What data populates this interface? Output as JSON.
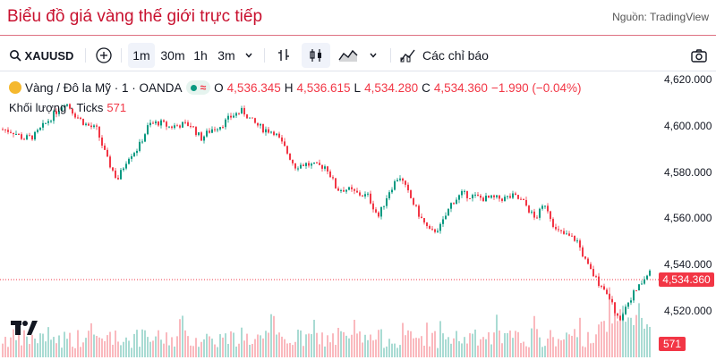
{
  "header": {
    "title": "Biểu đồ giá vàng thế giới trực tiếp",
    "source": "Nguồn: TradingView"
  },
  "toolbar": {
    "symbol": "XAUUSD",
    "intervals": [
      "1m",
      "30m",
      "1h",
      "3m"
    ],
    "active_interval": "1m",
    "indicators_label": "Các chỉ báo"
  },
  "legend": {
    "instrument": "Vàng / Đô la Mỹ · 1 · OANDA",
    "open_label": "O",
    "open": "4,536.345",
    "high_label": "H",
    "high": "4,536.615",
    "low_label": "L",
    "low": "4,534.280",
    "close_label": "C",
    "close": "4,534.360",
    "change": "−1.990 (−0.04%)",
    "volume_label": "Khối lượng · Ticks",
    "volume_value": "571"
  },
  "axis": {
    "ticks": [
      "4,620.000",
      "4,600.000",
      "4,580.000",
      "4,560.000",
      "4,540.000",
      "4,520.000"
    ],
    "tick_values": [
      4620,
      4600,
      4580,
      4560,
      4540,
      4520
    ],
    "last_price": "4,534.360",
    "last_volume": "571"
  },
  "colors": {
    "up": "#089981",
    "down": "#f23645",
    "title": "#c8102e",
    "gold": "#f5b82e"
  },
  "chart_data": {
    "type": "candlestick",
    "x_range": "1-minute bars",
    "ylim": [
      4512,
      4622
    ],
    "price_path": [
      4598,
      4597,
      4594,
      4595,
      4600,
      4605,
      4610,
      4604,
      4600,
      4598,
      4585,
      4576,
      4586,
      4590,
      4600,
      4601,
      4599,
      4600,
      4600,
      4594,
      4598,
      4600,
      4604,
      4606,
      4601,
      4598,
      4597,
      4590,
      4582,
      4583,
      4582,
      4582,
      4572,
      4572,
      4570,
      4569,
      4560,
      4571,
      4578,
      4569,
      4560,
      4553,
      4556,
      4566,
      4570,
      4569,
      4568,
      4568,
      4568,
      4569,
      4566,
      4559,
      4566,
      4554,
      4552,
      4550,
      4539,
      4532,
      4527,
      4515,
      4524,
      4530,
      4536
    ],
    "volume_level": "low with a few spikes; last bar 571 ticks"
  }
}
